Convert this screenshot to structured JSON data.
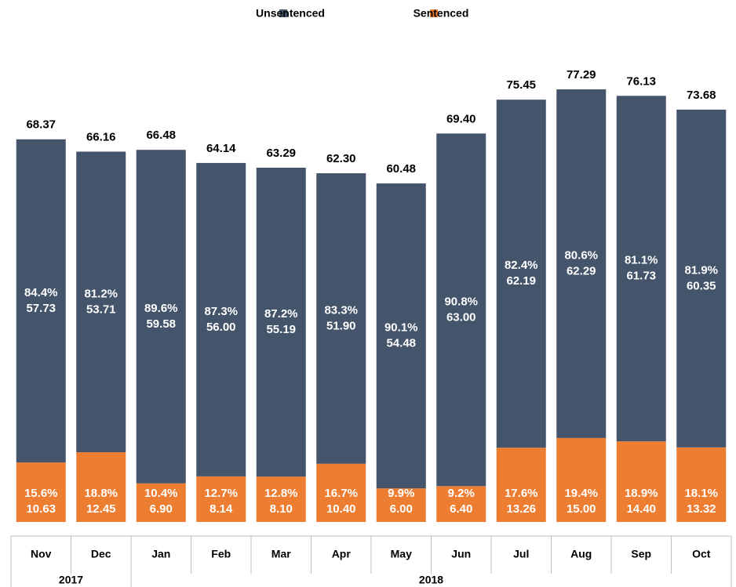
{
  "chart_data": {
    "type": "stacked_bar",
    "categories": [
      "Nov",
      "Dec",
      "Jan",
      "Feb",
      "Mar",
      "Apr",
      "May",
      "Jun",
      "Jul",
      "Aug",
      "Sep",
      "Oct"
    ],
    "groups": [
      {
        "label": "2017",
        "count": 2
      },
      {
        "label": "2018",
        "count": 10
      }
    ],
    "series": [
      {
        "name": "Unsentenced",
        "color": "#44546a",
        "values": [
          57.73,
          53.71,
          59.58,
          56.0,
          55.19,
          51.9,
          54.48,
          63.0,
          62.19,
          62.29,
          61.73,
          60.35
        ],
        "value_labels": [
          "57.73",
          "53.71",
          "59.58",
          "56.00",
          "55.19",
          "51.90",
          "54.48",
          "63.00",
          "62.19",
          "62.29",
          "61.73",
          "60.35"
        ],
        "percent_labels": [
          "84.4%",
          "81.2%",
          "89.6%",
          "87.3%",
          "87.2%",
          "83.3%",
          "90.1%",
          "90.8%",
          "82.4%",
          "80.6%",
          "81.1%",
          "81.9%"
        ]
      },
      {
        "name": "Sentenced",
        "color": "#ed7d31",
        "values": [
          10.63,
          12.45,
          6.9,
          8.14,
          8.1,
          10.4,
          6.0,
          6.4,
          13.26,
          15.0,
          14.4,
          13.32
        ],
        "value_labels": [
          "10.63",
          "12.45",
          "6.90",
          "8.14",
          "8.10",
          "10.40",
          "6.00",
          "6.40",
          "13.26",
          "15.00",
          "14.40",
          "13.32"
        ],
        "percent_labels": [
          "15.6%",
          "18.8%",
          "10.4%",
          "12.7%",
          "12.8%",
          "16.7%",
          "9.9%",
          "9.2%",
          "17.6%",
          "19.4%",
          "18.9%",
          "18.1%"
        ]
      }
    ],
    "total_labels": [
      "68.37",
      "66.16",
      "66.48",
      "64.14",
      "63.29",
      "62.30",
      "60.48",
      "69.40",
      "75.45",
      "77.29",
      "76.13",
      "73.68"
    ],
    "legend": "top"
  }
}
